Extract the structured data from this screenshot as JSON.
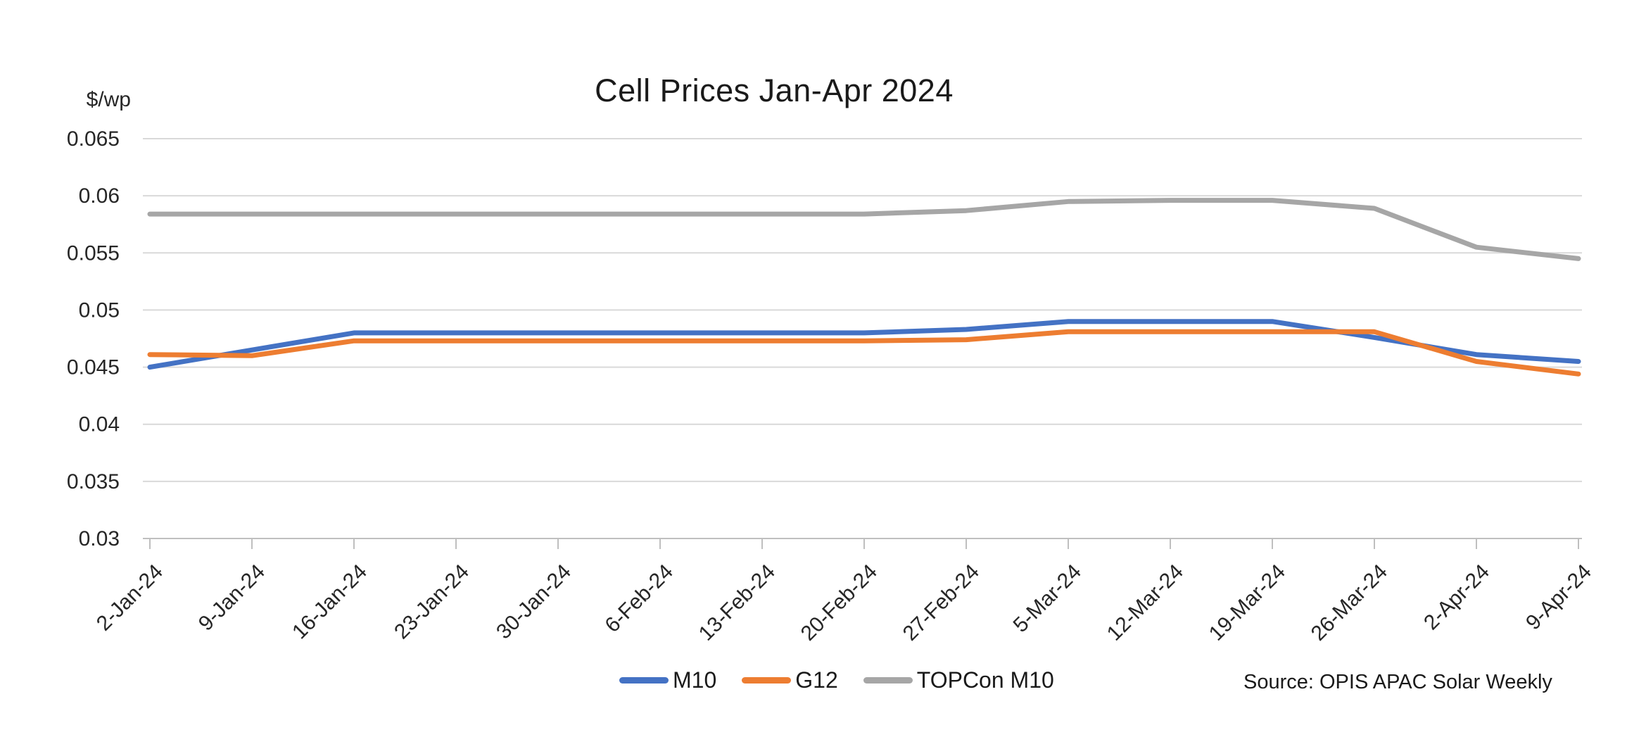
{
  "title": "Cell Prices Jan-Apr 2024",
  "y_axis_unit": "$/wp",
  "source": "Source: OPIS APAC Solar Weekly",
  "colors": {
    "m10": "#4472C4",
    "g12": "#ED7D31",
    "topcon_m10": "#A6A6A6",
    "gridline": "#D9D9D9",
    "axis": "#BFBFBF",
    "tick_text": "#262626"
  },
  "chart_data": {
    "type": "line",
    "title": "Cell Prices Jan-Apr 2024",
    "xlabel": "",
    "ylabel": "$/wp",
    "ylim": [
      0.03,
      0.065
    ],
    "grid": true,
    "legend_position": "bottom",
    "x": [
      "2-Jan-24",
      "9-Jan-24",
      "16-Jan-24",
      "23-Jan-24",
      "30-Jan-24",
      "6-Feb-24",
      "13-Feb-24",
      "20-Feb-24",
      "27-Feb-24",
      "5-Mar-24",
      "12-Mar-24",
      "19-Mar-24",
      "26-Mar-24",
      "2-Apr-24",
      "9-Apr-24"
    ],
    "y_ticks": [
      {
        "label": "0.065",
        "value": 0.065
      },
      {
        "label": "0.06",
        "value": 0.06
      },
      {
        "label": "0.055",
        "value": 0.055
      },
      {
        "label": "0.05",
        "value": 0.05
      },
      {
        "label": "0.045",
        "value": 0.045
      },
      {
        "label": "0.04",
        "value": 0.04
      },
      {
        "label": "0.035",
        "value": 0.035
      },
      {
        "label": "0.03",
        "value": 0.03
      }
    ],
    "series": [
      {
        "name": "M10",
        "color": "#4472C4",
        "values": [
          0.045,
          0.0465,
          0.048,
          0.048,
          0.048,
          0.048,
          0.048,
          0.048,
          0.0483,
          0.049,
          0.049,
          0.049,
          0.0476,
          0.0461,
          0.0455
        ]
      },
      {
        "name": "G12",
        "color": "#ED7D31",
        "values": [
          0.0461,
          0.046,
          0.0473,
          0.0473,
          0.0473,
          0.0473,
          0.0473,
          0.0473,
          0.0474,
          0.0481,
          0.0481,
          0.0481,
          0.0481,
          0.0455,
          0.0444
        ]
      },
      {
        "name": "TOPCon M10",
        "color": "#A6A6A6",
        "values": [
          0.0584,
          0.0584,
          0.0584,
          0.0584,
          0.0584,
          0.0584,
          0.0584,
          0.0584,
          0.0587,
          0.0595,
          0.0596,
          0.0596,
          0.0589,
          0.0555,
          0.0545
        ]
      }
    ]
  }
}
